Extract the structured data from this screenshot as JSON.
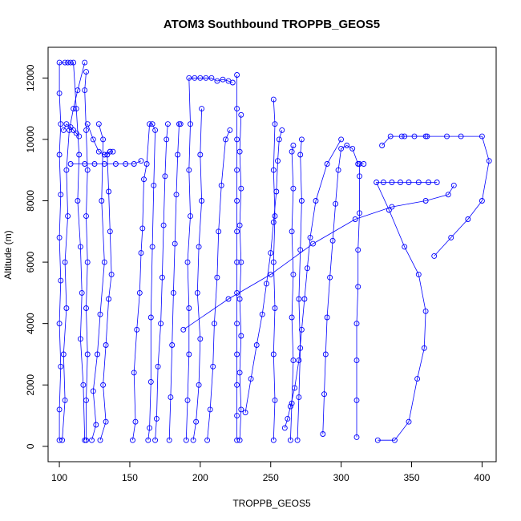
{
  "chart_data": {
    "type": "scatter",
    "title": "ATOM3 Southbound TROPPB_GEOS5",
    "xlabel": "TROPPB_GEOS5",
    "ylabel": "Altitude (m)",
    "xlim": [
      92,
      410
    ],
    "ylim": [
      -500,
      13000
    ],
    "xticks": [
      100,
      150,
      200,
      250,
      300,
      350,
      400
    ],
    "yticks": [
      0,
      2000,
      4000,
      6000,
      8000,
      10000,
      12000
    ],
    "grid": false,
    "marker": "open-circle",
    "connected": true,
    "color": "#0000ff",
    "series": [
      {
        "values": [
          [
            100,
            200
          ],
          [
            100,
            1200
          ],
          [
            101,
            2600
          ],
          [
            100,
            4000
          ],
          [
            101,
            5400
          ],
          [
            100,
            6800
          ],
          [
            101,
            8200
          ],
          [
            100,
            9500
          ],
          [
            101,
            10500
          ],
          [
            100,
            11500
          ],
          [
            100,
            12500
          ],
          [
            104,
            12500
          ],
          [
            106,
            12500
          ],
          [
            108,
            12500
          ],
          [
            110,
            12500
          ],
          [
            112,
            11000
          ],
          [
            114,
            9500
          ],
          [
            113,
            8000
          ],
          [
            115,
            6500
          ],
          [
            116,
            5000
          ],
          [
            115,
            3500
          ],
          [
            117,
            2000
          ],
          [
            118,
            200
          ]
        ]
      },
      {
        "values": [
          [
            102,
            200
          ],
          [
            104,
            1500
          ],
          [
            103,
            3000
          ],
          [
            105,
            4500
          ],
          [
            104,
            6000
          ],
          [
            106,
            7500
          ],
          [
            105,
            9000
          ],
          [
            107,
            10300
          ],
          [
            110,
            11000
          ],
          [
            113,
            11600
          ],
          [
            118,
            12500
          ]
        ]
      },
      {
        "values": [
          [
            119,
            200
          ],
          [
            119,
            1500
          ],
          [
            120,
            3000
          ],
          [
            119,
            4500
          ],
          [
            120,
            6000
          ],
          [
            119,
            7500
          ],
          [
            120,
            9000
          ],
          [
            119,
            10300
          ],
          [
            118,
            11600
          ],
          [
            119,
            12200
          ]
        ]
      },
      {
        "values": [
          [
            108,
            9200
          ],
          [
            118,
            9200
          ],
          [
            125,
            9200
          ],
          [
            132,
            9200
          ],
          [
            140,
            9200
          ],
          [
            147,
            9200
          ],
          [
            153,
            9200
          ],
          [
            158,
            9300
          ]
        ]
      },
      {
        "values": [
          [
            129,
            200
          ],
          [
            133,
            800
          ],
          [
            131,
            2000
          ],
          [
            133,
            3300
          ],
          [
            135,
            4800
          ],
          [
            137,
            5600
          ],
          [
            136,
            7000
          ],
          [
            135,
            8300
          ],
          [
            134,
            9500
          ],
          [
            136,
            9600
          ],
          [
            138,
            9600
          ]
        ]
      },
      {
        "values": [
          [
            123,
            200
          ],
          [
            126,
            700
          ],
          [
            124,
            1800
          ],
          [
            127,
            3000
          ],
          [
            129,
            4300
          ],
          [
            132,
            6000
          ],
          [
            130,
            8000
          ],
          [
            131,
            10000
          ],
          [
            128,
            10500
          ]
        ]
      },
      {
        "values": [
          [
            152,
            200
          ],
          [
            154,
            800
          ],
          [
            153,
            2400
          ],
          [
            155,
            3800
          ],
          [
            157,
            5000
          ],
          [
            158,
            6300
          ],
          [
            159,
            7100
          ],
          [
            160,
            8700
          ],
          [
            162,
            9200
          ],
          [
            164,
            10500
          ],
          [
            166,
            10500
          ],
          [
            168,
            10300
          ],
          [
            167,
            8500
          ],
          [
            166,
            6500
          ],
          [
            165,
            4200
          ],
          [
            165,
            2100
          ],
          [
            164,
            600
          ],
          [
            163,
            200
          ]
        ]
      },
      {
        "values": [
          [
            168,
            200
          ],
          [
            169,
            900
          ],
          [
            170,
            2600
          ],
          [
            172,
            4000
          ],
          [
            173,
            5500
          ],
          [
            174,
            7200
          ],
          [
            175,
            8800
          ],
          [
            176,
            10000
          ],
          [
            177,
            10500
          ]
        ]
      },
      {
        "values": [
          [
            178,
            200
          ],
          [
            179,
            1600
          ],
          [
            180,
            3300
          ],
          [
            181,
            5000
          ],
          [
            182,
            6600
          ],
          [
            183,
            8200
          ],
          [
            184,
            9500
          ],
          [
            185,
            10500
          ],
          [
            186,
            10500
          ]
        ]
      },
      {
        "values": [
          [
            190,
            200
          ],
          [
            191,
            1500
          ],
          [
            192,
            3000
          ],
          [
            192,
            4500
          ],
          [
            191,
            6000
          ],
          [
            193,
            7500
          ],
          [
            192,
            9000
          ],
          [
            193,
            10500
          ],
          [
            192,
            12000
          ],
          [
            196,
            12000
          ],
          [
            200,
            12000
          ],
          [
            204,
            12000
          ],
          [
            208,
            12000
          ],
          [
            212,
            11900
          ],
          [
            216,
            11950
          ],
          [
            220,
            11900
          ],
          [
            223,
            11850
          ]
        ]
      },
      {
        "values": [
          [
            195,
            200
          ],
          [
            197,
            800
          ],
          [
            199,
            2000
          ],
          [
            200,
            3500
          ],
          [
            198,
            5000
          ],
          [
            199,
            6500
          ],
          [
            201,
            8000
          ],
          [
            200,
            9500
          ],
          [
            201,
            11000
          ]
        ]
      },
      {
        "values": [
          [
            205,
            200
          ],
          [
            207,
            1200
          ],
          [
            209,
            2600
          ],
          [
            210,
            4000
          ],
          [
            212,
            5500
          ],
          [
            213,
            7000
          ],
          [
            215,
            8500
          ],
          [
            218,
            10000
          ],
          [
            221,
            10300
          ]
        ]
      },
      {
        "values": [
          [
            226,
            200
          ],
          [
            226,
            1000
          ],
          [
            226,
            2000
          ],
          [
            226,
            3000
          ],
          [
            226,
            4000
          ],
          [
            226,
            5000
          ],
          [
            226,
            6000
          ],
          [
            226,
            7000
          ],
          [
            226,
            8000
          ],
          [
            226,
            9000
          ],
          [
            226,
            10000
          ],
          [
            226,
            11000
          ],
          [
            226,
            12100
          ]
        ]
      },
      {
        "values": [
          [
            228,
            200
          ],
          [
            229,
            1200
          ],
          [
            228,
            2400
          ],
          [
            229,
            3600
          ],
          [
            228,
            4800
          ],
          [
            229,
            6000
          ],
          [
            228,
            7200
          ],
          [
            229,
            8400
          ],
          [
            228,
            9600
          ],
          [
            229,
            10800
          ]
        ]
      },
      {
        "values": [
          [
            232,
            1100
          ],
          [
            236,
            2200
          ],
          [
            240,
            3300
          ],
          [
            244,
            4300
          ],
          [
            247,
            5300
          ],
          [
            250,
            6300
          ],
          [
            252,
            7300
          ],
          [
            254,
            8300
          ],
          [
            255,
            9300
          ],
          [
            256,
            10000
          ],
          [
            258,
            10300
          ]
        ]
      },
      {
        "values": [
          [
            252,
            200
          ],
          [
            253,
            1500
          ],
          [
            252,
            3000
          ],
          [
            253,
            4500
          ],
          [
            252,
            6000
          ],
          [
            253,
            7500
          ],
          [
            252,
            9000
          ],
          [
            253,
            10500
          ],
          [
            252,
            11300
          ]
        ]
      },
      {
        "values": [
          [
            264,
            200
          ],
          [
            265,
            1400
          ],
          [
            266,
            2800
          ],
          [
            265,
            4200
          ],
          [
            266,
            5600
          ],
          [
            265,
            7000
          ],
          [
            266,
            8400
          ],
          [
            265,
            9600
          ],
          [
            266,
            9800
          ]
        ]
      },
      {
        "values": [
          [
            269,
            200
          ],
          [
            270,
            1600
          ],
          [
            271,
            3200
          ],
          [
            270,
            4800
          ],
          [
            271,
            6400
          ],
          [
            272,
            8000
          ],
          [
            271,
            9500
          ],
          [
            272,
            10000
          ]
        ]
      },
      {
        "values": [
          [
            260,
            600
          ],
          [
            262,
            900
          ],
          [
            264,
            1300
          ],
          [
            267,
            1900
          ],
          [
            270,
            2800
          ],
          [
            272,
            3800
          ],
          [
            274,
            4800
          ],
          [
            276,
            5800
          ],
          [
            278,
            6800
          ],
          [
            282,
            8000
          ],
          [
            290,
            9200
          ],
          [
            300,
            10000
          ]
        ]
      },
      {
        "values": [
          [
            287,
            400
          ],
          [
            288,
            1700
          ],
          [
            289,
            3000
          ],
          [
            290,
            4200
          ],
          [
            292,
            5500
          ],
          [
            294,
            6700
          ],
          [
            296,
            7900
          ],
          [
            298,
            9000
          ],
          [
            300,
            9700
          ],
          [
            304,
            9800
          ],
          [
            308,
            9700
          ],
          [
            312,
            9200
          ],
          [
            316,
            9200
          ]
        ]
      },
      {
        "values": [
          [
            311,
            300
          ],
          [
            311,
            1500
          ],
          [
            311,
            2800
          ],
          [
            311,
            4000
          ],
          [
            312,
            5200
          ],
          [
            312,
            6400
          ],
          [
            313,
            7600
          ],
          [
            313,
            8800
          ],
          [
            313,
            9200
          ]
        ]
      },
      {
        "values": [
          [
            326,
            200
          ],
          [
            338,
            200
          ],
          [
            348,
            800
          ],
          [
            354,
            2200
          ],
          [
            359,
            3200
          ],
          [
            360,
            4400
          ],
          [
            355,
            5600
          ],
          [
            345,
            6500
          ],
          [
            334,
            7700
          ],
          [
            325,
            8600
          ],
          [
            330,
            8600
          ],
          [
            336,
            8600
          ],
          [
            342,
            8600
          ],
          [
            348,
            8600
          ],
          [
            355,
            8600
          ],
          [
            362,
            8600
          ],
          [
            368,
            8600
          ]
        ]
      },
      {
        "values": [
          [
            188,
            3800
          ],
          [
            220,
            4800
          ],
          [
            250,
            5600
          ],
          [
            280,
            6600
          ],
          [
            310,
            7400
          ],
          [
            336,
            7800
          ],
          [
            360,
            8000
          ],
          [
            376,
            8200
          ],
          [
            380,
            8500
          ]
        ]
      },
      {
        "values": [
          [
            345,
            10100
          ],
          [
            360,
            10100
          ],
          [
            375,
            10100
          ],
          [
            385,
            10100
          ],
          [
            400,
            10100
          ],
          [
            405,
            9300
          ],
          [
            400,
            8000
          ],
          [
            390,
            7400
          ],
          [
            378,
            6800
          ],
          [
            366,
            6200
          ]
        ]
      },
      {
        "values": [
          [
            329,
            9800
          ],
          [
            335,
            10100
          ],
          [
            343,
            10100
          ],
          [
            352,
            10100
          ],
          [
            361,
            10100
          ]
        ]
      },
      {
        "values": [
          [
            120,
            10500
          ],
          [
            124,
            10000
          ],
          [
            128,
            9600
          ],
          [
            132,
            9500
          ],
          [
            136,
            9600
          ]
        ]
      },
      {
        "values": [
          [
            103,
            10300
          ],
          [
            105,
            10500
          ],
          [
            108,
            10400
          ],
          [
            110,
            10300
          ],
          [
            112,
            10200
          ],
          [
            114,
            10100
          ]
        ]
      }
    ]
  }
}
